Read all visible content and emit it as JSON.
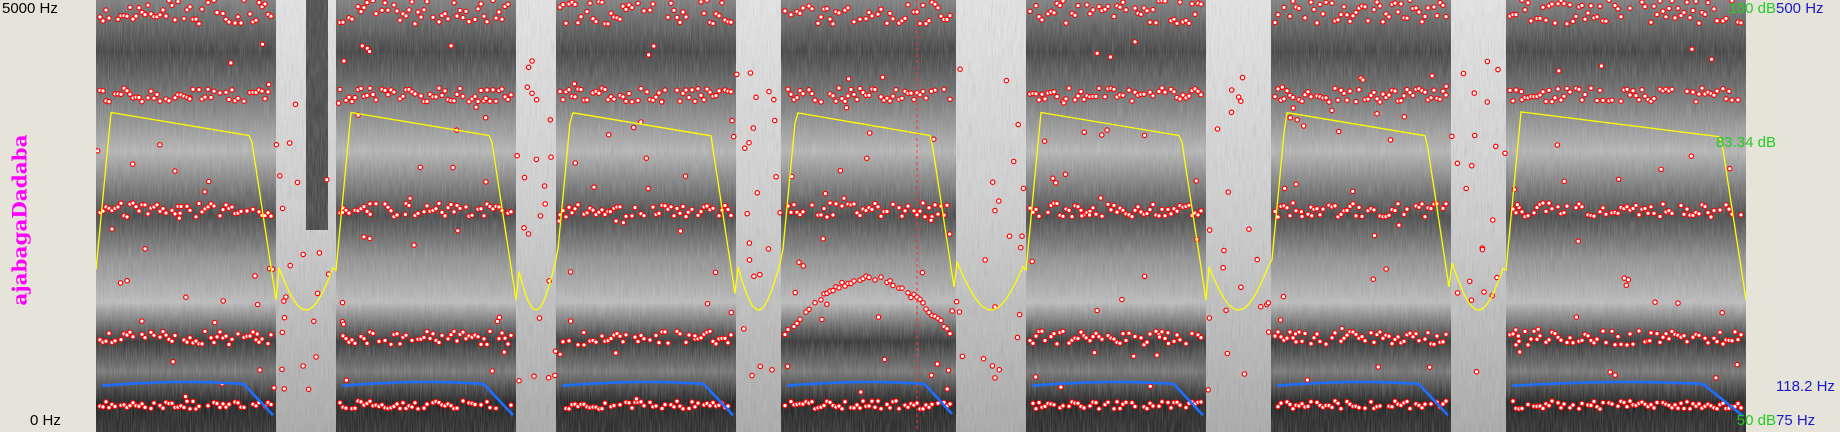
{
  "window": {
    "freq_max": "5000 Hz",
    "freq_min": "0 Hz",
    "utterance_label": "ajabagaDadaba"
  },
  "right_axis": {
    "intensity_max": "100 dB",
    "intensity_current": "83.34 dB",
    "intensity_min": "50 dB",
    "pitch_max": "500 Hz",
    "pitch_current": "118.2 Hz",
    "pitch_min": "75 Hz"
  },
  "colors": {
    "background": "#e6e4d8",
    "formant_dots": "#ff0000",
    "intensity_curve": "#ffff00",
    "pitch_curve": "#1e6eff",
    "cursor_line": "#ff3030",
    "label_magenta": "#ff00ff",
    "db_green": "#22cc22",
    "hz_blue": "#1a1acc"
  },
  "icons": {
    "spectrogram": "spectrogram-panel"
  }
}
